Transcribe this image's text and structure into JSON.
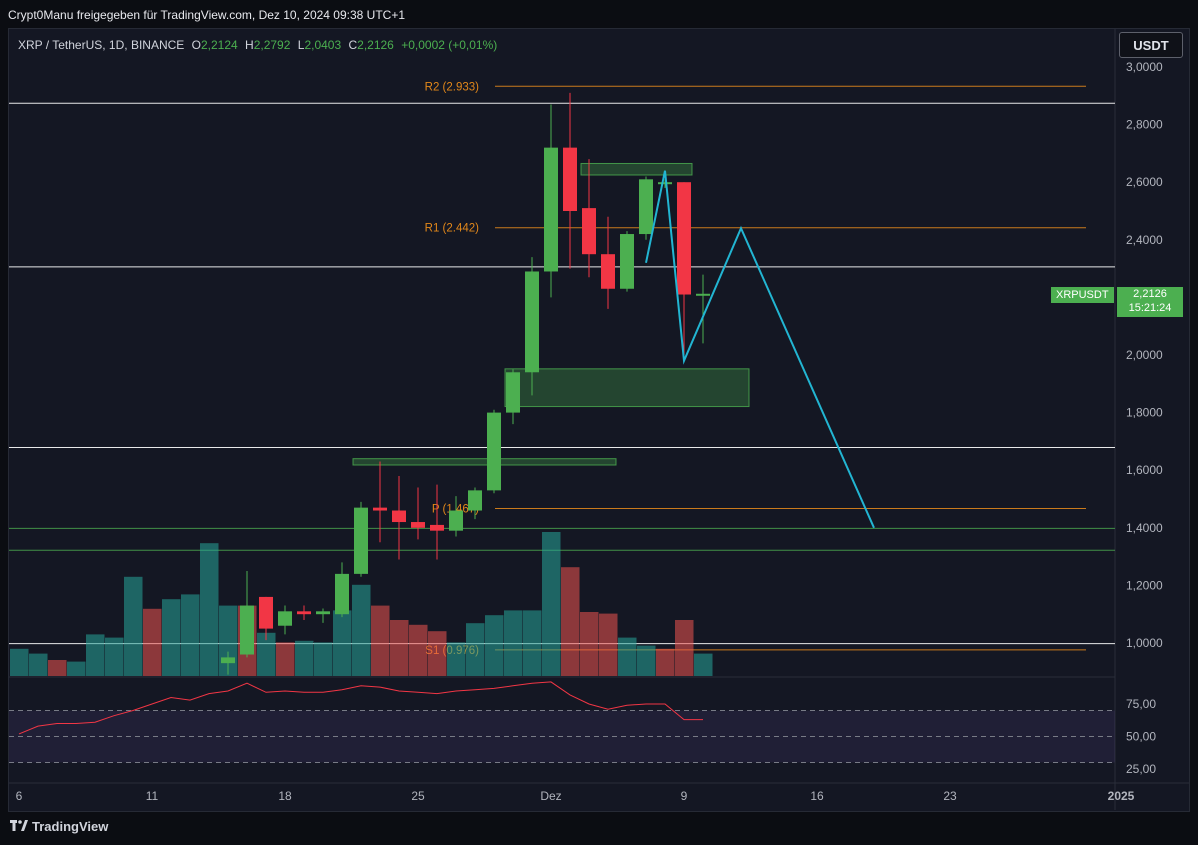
{
  "header": {
    "text": "Crypt0Manu freigegeben für TradingView.com, Dez 10, 2024 09:38 UTC+1"
  },
  "legend": {
    "title": "XRP / TetherUS, 1D, BINANCE",
    "o_label": "O",
    "o_value": "2,2124",
    "h_label": "H",
    "h_value": "2,2792",
    "l_label": "L",
    "l_value": "2,0403",
    "c_label": "C",
    "c_value": "2,2126",
    "change": "+0,0002 (+0,01%)"
  },
  "currency_button": "USDT",
  "symbol_tag": "XRPUSDT",
  "price_tag": {
    "price": "2,2126",
    "countdown": "15:21:24"
  },
  "footer": {
    "brand": "TradingView"
  },
  "colors": {
    "up": "#4caf50",
    "down": "#f23645",
    "vol_up": "#26a69a",
    "vol_down": "#ef5350",
    "pivot": "#f7931a",
    "zone": "#4caf50",
    "projection": "#22b5d2",
    "rsi": "#f23645"
  },
  "chart_data": {
    "type": "candlestick",
    "symbol": "XRP / TetherUS",
    "interval": "1D",
    "ylim": [
      0.89,
      3.07
    ],
    "price_ticks": [
      "3,0000",
      "2,8000",
      "2,6000",
      "2,4000",
      "2,2000",
      "2,0000",
      "1,8000",
      "1,6000",
      "1,4000",
      "1,2000",
      "1,0000"
    ],
    "x_ticks": [
      "6",
      "11",
      "18",
      "25",
      "Dez",
      "9",
      "16",
      "23",
      "2025"
    ],
    "candles": [
      {
        "date": "2024-11-15",
        "o": 0.93,
        "h": 0.97,
        "l": 0.89,
        "c": 0.95
      },
      {
        "date": "2024-11-16",
        "o": 0.96,
        "h": 1.25,
        "l": 0.95,
        "c": 1.13
      },
      {
        "date": "2024-11-17",
        "o": 1.16,
        "h": 1.16,
        "l": 1.01,
        "c": 1.05
      },
      {
        "date": "2024-11-18",
        "o": 1.06,
        "h": 1.13,
        "l": 1.03,
        "c": 1.11
      },
      {
        "date": "2024-11-19",
        "o": 1.11,
        "h": 1.13,
        "l": 1.08,
        "c": 1.1
      },
      {
        "date": "2024-11-20",
        "o": 1.1,
        "h": 1.12,
        "l": 1.07,
        "c": 1.11
      },
      {
        "date": "2024-11-21",
        "o": 1.1,
        "h": 1.28,
        "l": 1.09,
        "c": 1.24
      },
      {
        "date": "2024-11-22",
        "o": 1.24,
        "h": 1.49,
        "l": 1.23,
        "c": 1.47
      },
      {
        "date": "2024-11-23",
        "o": 1.47,
        "h": 1.63,
        "l": 1.35,
        "c": 1.46
      },
      {
        "date": "2024-11-24",
        "o": 1.46,
        "h": 1.58,
        "l": 1.29,
        "c": 1.42
      },
      {
        "date": "2024-11-25",
        "o": 1.42,
        "h": 1.54,
        "l": 1.36,
        "c": 1.4
      },
      {
        "date": "2024-11-26",
        "o": 1.41,
        "h": 1.55,
        "l": 1.29,
        "c": 1.39
      },
      {
        "date": "2024-11-27",
        "o": 1.39,
        "h": 1.51,
        "l": 1.37,
        "c": 1.46
      },
      {
        "date": "2024-11-28",
        "o": 1.46,
        "h": 1.54,
        "l": 1.43,
        "c": 1.53
      },
      {
        "date": "2024-11-29",
        "o": 1.53,
        "h": 1.81,
        "l": 1.52,
        "c": 1.8
      },
      {
        "date": "2024-11-30",
        "o": 1.8,
        "h": 1.95,
        "l": 1.76,
        "c": 1.94
      },
      {
        "date": "2024-12-01",
        "o": 1.94,
        "h": 2.34,
        "l": 1.86,
        "c": 2.29
      },
      {
        "date": "2024-12-02",
        "o": 2.29,
        "h": 2.87,
        "l": 2.2,
        "c": 2.72
      },
      {
        "date": "2024-12-03",
        "o": 2.72,
        "h": 2.91,
        "l": 2.3,
        "c": 2.5
      },
      {
        "date": "2024-12-04",
        "o": 2.51,
        "h": 2.68,
        "l": 2.27,
        "c": 2.35
      },
      {
        "date": "2024-12-05",
        "o": 2.35,
        "h": 2.48,
        "l": 2.16,
        "c": 2.23
      },
      {
        "date": "2024-12-06",
        "o": 2.23,
        "h": 2.43,
        "l": 2.22,
        "c": 2.42
      },
      {
        "date": "2024-12-07",
        "o": 2.42,
        "h": 2.62,
        "l": 2.4,
        "c": 2.61
      },
      {
        "date": "2024-12-08",
        "o": 2.6,
        "h": 2.61,
        "l": 2.58,
        "c": 2.6
      },
      {
        "date": "2024-12-09",
        "o": 2.6,
        "h": 2.6,
        "l": 1.98,
        "c": 2.21
      },
      {
        "date": "2024-12-10",
        "o": 2.2124,
        "h": 2.2792,
        "l": 2.0403,
        "c": 2.2126
      }
    ],
    "volume": [
      {
        "date": "2024-11-04",
        "v": 0.17,
        "dir": "up"
      },
      {
        "date": "2024-11-05",
        "v": 0.14,
        "dir": "up"
      },
      {
        "date": "2024-11-06",
        "v": 0.1,
        "dir": "down"
      },
      {
        "date": "2024-11-07",
        "v": 0.09,
        "dir": "up"
      },
      {
        "date": "2024-11-08",
        "v": 0.26,
        "dir": "up"
      },
      {
        "date": "2024-11-09",
        "v": 0.24,
        "dir": "up"
      },
      {
        "date": "2024-11-10",
        "v": 0.62,
        "dir": "up"
      },
      {
        "date": "2024-11-11",
        "v": 0.42,
        "dir": "down"
      },
      {
        "date": "2024-11-12",
        "v": 0.48,
        "dir": "up"
      },
      {
        "date": "2024-11-13",
        "v": 0.51,
        "dir": "up"
      },
      {
        "date": "2024-11-14",
        "v": 0.83,
        "dir": "up"
      },
      {
        "date": "2024-11-15",
        "v": 0.44,
        "dir": "up"
      },
      {
        "date": "2024-11-16",
        "v": 0.44,
        "dir": "down"
      },
      {
        "date": "2024-11-17",
        "v": 0.27,
        "dir": "up"
      },
      {
        "date": "2024-11-18",
        "v": 0.21,
        "dir": "down"
      },
      {
        "date": "2024-11-19",
        "v": 0.22,
        "dir": "up"
      },
      {
        "date": "2024-11-20",
        "v": 0.21,
        "dir": "up"
      },
      {
        "date": "2024-11-21",
        "v": 0.41,
        "dir": "up"
      },
      {
        "date": "2024-11-22",
        "v": 0.57,
        "dir": "up"
      },
      {
        "date": "2024-11-23",
        "v": 0.44,
        "dir": "down"
      },
      {
        "date": "2024-11-24",
        "v": 0.35,
        "dir": "down"
      },
      {
        "date": "2024-11-25",
        "v": 0.32,
        "dir": "down"
      },
      {
        "date": "2024-11-26",
        "v": 0.28,
        "dir": "down"
      },
      {
        "date": "2024-11-27",
        "v": 0.21,
        "dir": "up"
      },
      {
        "date": "2024-11-28",
        "v": 0.33,
        "dir": "up"
      },
      {
        "date": "2024-11-29",
        "v": 0.38,
        "dir": "up"
      },
      {
        "date": "2024-11-30",
        "v": 0.41,
        "dir": "up"
      },
      {
        "date": "2024-12-01",
        "v": 0.41,
        "dir": "up"
      },
      {
        "date": "2024-12-02",
        "v": 0.9,
        "dir": "up"
      },
      {
        "date": "2024-12-03",
        "v": 0.68,
        "dir": "down"
      },
      {
        "date": "2024-12-04",
        "v": 0.4,
        "dir": "down"
      },
      {
        "date": "2024-12-05",
        "v": 0.39,
        "dir": "down"
      },
      {
        "date": "2024-12-06",
        "v": 0.24,
        "dir": "up"
      },
      {
        "date": "2024-12-07",
        "v": 0.19,
        "dir": "up"
      },
      {
        "date": "2024-12-08",
        "v": 0.17,
        "dir": "down"
      },
      {
        "date": "2024-12-09",
        "v": 0.35,
        "dir": "down"
      },
      {
        "date": "2024-12-10",
        "v": 0.14,
        "dir": "up"
      }
    ],
    "pivots": [
      {
        "label": "R2",
        "text": "R2 (2.933)",
        "value": 2.933
      },
      {
        "label": "R1",
        "text": "R1 (2.442)",
        "value": 2.442
      },
      {
        "label": "P",
        "text": "P (1.467)",
        "value": 1.467
      },
      {
        "label": "S1",
        "text": "S1 (0.976)",
        "value": 0.976
      }
    ],
    "horizontal_lines": [
      {
        "value": 2.874,
        "color": "#ffffff"
      },
      {
        "value": 2.306,
        "color": "#ffffff"
      },
      {
        "value": 1.679,
        "color": "#ffffff"
      },
      {
        "value": 1.398,
        "color": "#4caf50"
      },
      {
        "value": 1.322,
        "color": "#4caf50"
      },
      {
        "value": 0.998,
        "color": "#ffffff"
      }
    ],
    "zones": [
      {
        "from": "2024-12-04",
        "to": "2024-12-09",
        "top": 2.665,
        "bottom": 2.625
      },
      {
        "from": "2024-11-30",
        "to": "2024-12-12",
        "top": 1.952,
        "bottom": 1.821
      },
      {
        "from": "2024-11-22",
        "to": "2024-12-05",
        "top": 1.64,
        "bottom": 1.618
      }
    ],
    "projection": [
      {
        "date": "2024-12-07",
        "value": 2.32
      },
      {
        "date": "2024-12-08",
        "value": 2.64
      },
      {
        "date": "2024-12-09",
        "value": 1.98
      },
      {
        "date": "2024-12-12",
        "value": 2.44
      },
      {
        "date": "2024-12-19",
        "value": 1.4
      }
    ],
    "rsi": {
      "ticks": [
        "75,00",
        "50,00",
        "25,00"
      ],
      "levels": [
        70,
        50,
        30
      ],
      "ylim": [
        20,
        95
      ],
      "values": [
        {
          "date": "2024-11-04",
          "v": 52
        },
        {
          "date": "2024-11-05",
          "v": 58
        },
        {
          "date": "2024-11-06",
          "v": 60
        },
        {
          "date": "2024-11-07",
          "v": 60
        },
        {
          "date": "2024-11-08",
          "v": 61
        },
        {
          "date": "2024-11-09",
          "v": 66
        },
        {
          "date": "2024-11-10",
          "v": 70
        },
        {
          "date": "2024-11-11",
          "v": 75
        },
        {
          "date": "2024-11-12",
          "v": 80
        },
        {
          "date": "2024-11-13",
          "v": 78
        },
        {
          "date": "2024-11-14",
          "v": 83
        },
        {
          "date": "2024-11-15",
          "v": 85
        },
        {
          "date": "2024-11-16",
          "v": 91
        },
        {
          "date": "2024-11-17",
          "v": 84
        },
        {
          "date": "2024-11-18",
          "v": 85
        },
        {
          "date": "2024-11-19",
          "v": 84
        },
        {
          "date": "2024-11-20",
          "v": 84
        },
        {
          "date": "2024-11-21",
          "v": 86
        },
        {
          "date": "2024-11-22",
          "v": 89
        },
        {
          "date": "2024-11-23",
          "v": 88
        },
        {
          "date": "2024-11-24",
          "v": 85
        },
        {
          "date": "2024-11-25",
          "v": 84
        },
        {
          "date": "2024-11-26",
          "v": 83
        },
        {
          "date": "2024-11-27",
          "v": 85
        },
        {
          "date": "2024-11-28",
          "v": 86
        },
        {
          "date": "2024-11-29",
          "v": 87
        },
        {
          "date": "2024-11-30",
          "v": 89
        },
        {
          "date": "2024-12-01",
          "v": 91
        },
        {
          "date": "2024-12-02",
          "v": 92
        },
        {
          "date": "2024-12-03",
          "v": 82
        },
        {
          "date": "2024-12-04",
          "v": 75
        },
        {
          "date": "2024-12-05",
          "v": 71
        },
        {
          "date": "2024-12-06",
          "v": 74
        },
        {
          "date": "2024-12-07",
          "v": 75
        },
        {
          "date": "2024-12-08",
          "v": 75
        },
        {
          "date": "2024-12-09",
          "v": 63
        },
        {
          "date": "2024-12-10",
          "v": 63
        }
      ]
    }
  }
}
